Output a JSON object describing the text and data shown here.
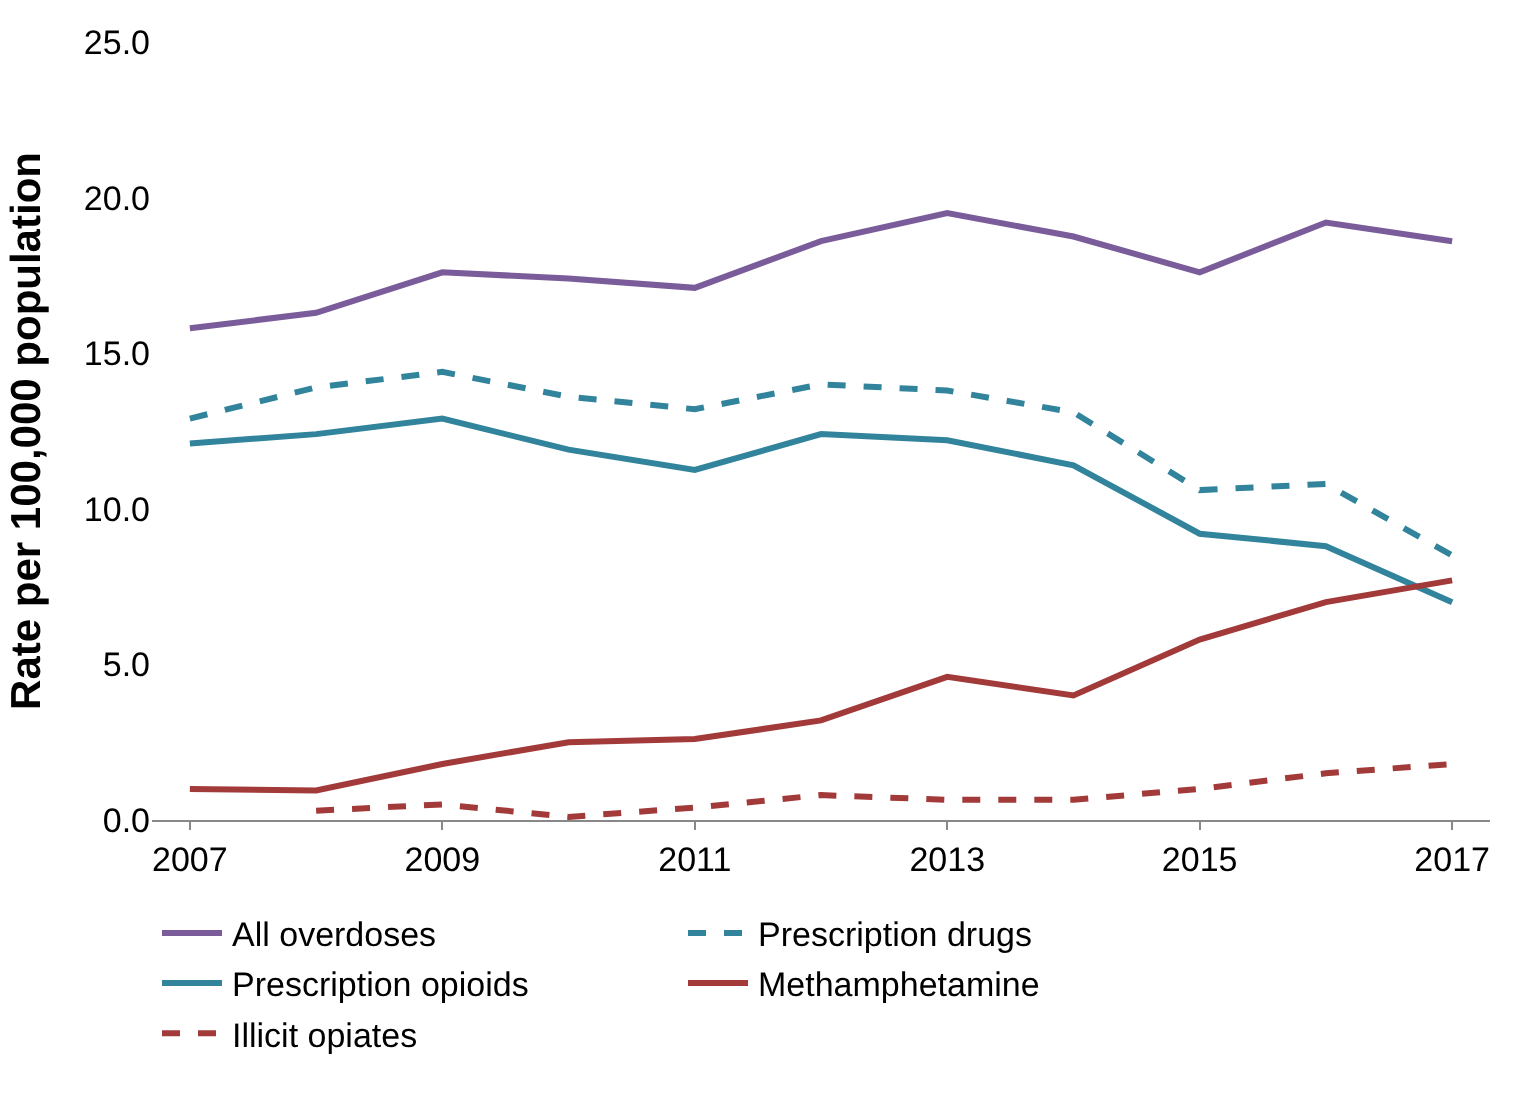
{
  "chart_data": {
    "type": "line",
    "ylabel": "Rate per 100,000 population",
    "x": [
      2007,
      2008,
      2009,
      2010,
      2011,
      2012,
      2013,
      2014,
      2015,
      2016,
      2017
    ],
    "series": [
      {
        "name": "All overdoses",
        "color": "#7b5c9a",
        "line_style": "solid",
        "values": [
          15.8,
          16.3,
          17.6,
          17.4,
          17.1,
          18.6,
          19.5,
          18.75,
          17.6,
          19.2,
          18.6
        ]
      },
      {
        "name": "Prescription drugs",
        "color": "#31849b",
        "line_style": "dashed",
        "values": [
          12.9,
          13.9,
          14.4,
          13.6,
          13.2,
          14.0,
          13.8,
          13.1,
          10.6,
          10.8,
          8.5
        ]
      },
      {
        "name": "Prescription opioids",
        "color": "#31849b",
        "line_style": "solid",
        "values": [
          12.1,
          12.4,
          12.9,
          11.9,
          11.25,
          12.4,
          12.2,
          11.4,
          9.2,
          8.8,
          7.0
        ]
      },
      {
        "name": "Methamphetamine",
        "color": "#a33a3a",
        "line_style": "solid",
        "values": [
          1.0,
          0.95,
          1.8,
          2.5,
          2.6,
          3.2,
          4.6,
          4.0,
          5.8,
          7.0,
          7.7
        ]
      },
      {
        "name": "Illicit opiates",
        "color": "#a33a3a",
        "line_style": "dashed",
        "values": [
          null,
          0.3,
          0.5,
          0.1,
          0.4,
          0.8,
          0.65,
          0.65,
          1.0,
          1.5,
          1.8
        ]
      }
    ],
    "xlim": [
      2006.7,
      2017.3
    ],
    "xticks": [
      2007,
      2009,
      2011,
      2013,
      2015,
      2017
    ],
    "ylim": [
      0,
      25
    ],
    "yticks": [
      {
        "value": 0,
        "label": "0.0"
      },
      {
        "value": 5,
        "label": "5.0"
      },
      {
        "value": 10,
        "label": "10.0"
      },
      {
        "value": 15,
        "label": "15.0"
      },
      {
        "value": 20,
        "label": "20.0"
      },
      {
        "value": 25,
        "label": "25.0"
      }
    ],
    "legend": "bottom",
    "marker": "none"
  }
}
